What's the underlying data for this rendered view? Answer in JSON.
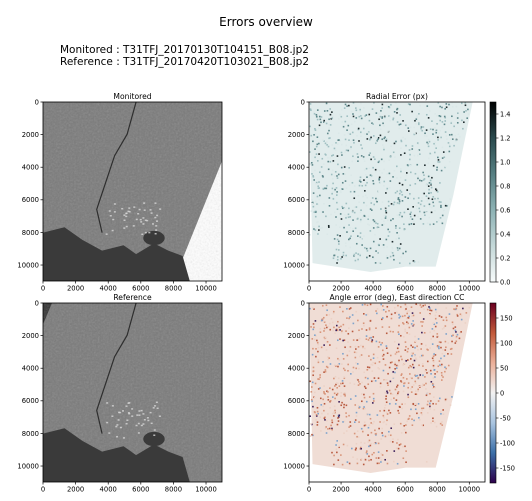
{
  "figure": {
    "title": "Errors overview",
    "monitored_label": "Monitored : T31TFJ_20170130T104151_B08.jp2",
    "reference_label": "Reference : T31TFJ_20170420T103021_B08.jp2"
  },
  "colors": {
    "land_gray": "#7a7a7a",
    "water_gray": "#3a3a3a",
    "nodata_gray": "#303030",
    "radial_colormap": [
      "#f7fbfb",
      "#c4d8d8",
      "#8db2b4",
      "#567f82",
      "#2a4a4d",
      "#000000"
    ],
    "angle_colormap": [
      "#2d004b",
      "#3b6fa8",
      "#a9c4e0",
      "#f2f2f2",
      "#ebb09a",
      "#c25a3a",
      "#6a0020"
    ]
  },
  "chart_data": [
    {
      "type": "heatmap",
      "title": "Monitored",
      "xlabel": "",
      "ylabel": "",
      "xlim": [
        0,
        10980
      ],
      "ylim": [
        10980,
        0
      ],
      "xticks": [
        "0",
        "2000",
        "4000",
        "6000",
        "8000",
        "10000"
      ],
      "yticks": [
        "0",
        "2000",
        "4000",
        "6000",
        "8000",
        "10000"
      ],
      "grid": false
    },
    {
      "type": "heatmap",
      "title": "Radial Error (px)",
      "xlabel": "",
      "ylabel": "",
      "xlim": [
        0,
        10980
      ],
      "ylim": [
        10980,
        0
      ],
      "xticks": [
        "0",
        "2000",
        "4000",
        "6000",
        "8000",
        "10000"
      ],
      "yticks": [
        "0",
        "2000",
        "4000",
        "6000",
        "8000",
        "10000"
      ],
      "colorbar": {
        "range": [
          0,
          1.5
        ],
        "ticks": [
          "0.0",
          "0.2",
          "0.4",
          "0.6",
          "0.8",
          "1.0",
          "1.2",
          "1.4"
        ]
      },
      "grid": false
    },
    {
      "type": "heatmap",
      "title": "Reference",
      "xlabel": "",
      "ylabel": "",
      "xlim": [
        0,
        10980
      ],
      "ylim": [
        10980,
        0
      ],
      "xticks": [
        "0",
        "2000",
        "4000",
        "6000",
        "8000",
        "10000"
      ],
      "yticks": [
        "0",
        "2000",
        "4000",
        "6000",
        "8000",
        "10000"
      ],
      "grid": false
    },
    {
      "type": "heatmap",
      "title": "Angle error (deg), East direction CC",
      "xlabel": "",
      "ylabel": "",
      "xlim": [
        0,
        10980
      ],
      "ylim": [
        10980,
        0
      ],
      "xticks": [
        "0",
        "2000",
        "4000",
        "6000",
        "8000",
        "10000"
      ],
      "yticks": [
        "0",
        "2000",
        "4000",
        "6000",
        "8000",
        "10000"
      ],
      "colorbar": {
        "range": [
          -180,
          180
        ],
        "ticks": [
          "150",
          "100",
          "50",
          "0",
          "-50",
          "-100",
          "-150"
        ]
      },
      "grid": false
    }
  ]
}
